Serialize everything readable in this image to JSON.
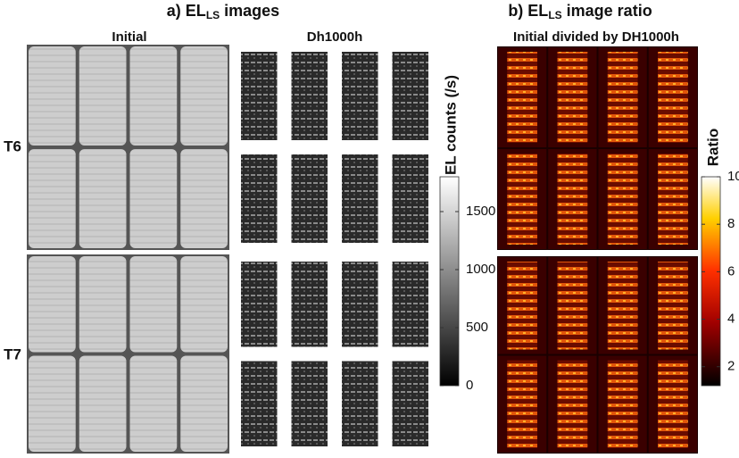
{
  "panel_a": {
    "title": {
      "main": "a) EL",
      "sub": "LS",
      "rest": " images"
    },
    "columns": [
      "Initial",
      "Dh1000h"
    ],
    "rows": [
      "T6",
      "T7"
    ],
    "colorbar": {
      "label": "EL counts (/s)",
      "lim": [
        0,
        1800
      ],
      "ticks": [
        0,
        500,
        1000,
        1500
      ]
    }
  },
  "panel_b": {
    "title": {
      "main": "b) EL",
      "sub": "LS",
      "rest": " image ratio"
    },
    "subtitle": "Initial divided by DH1000h",
    "colorbar": {
      "label": "Ratio",
      "lim": [
        1.2,
        10
      ],
      "ticks": [
        2,
        4,
        6,
        8,
        10
      ]
    }
  }
}
